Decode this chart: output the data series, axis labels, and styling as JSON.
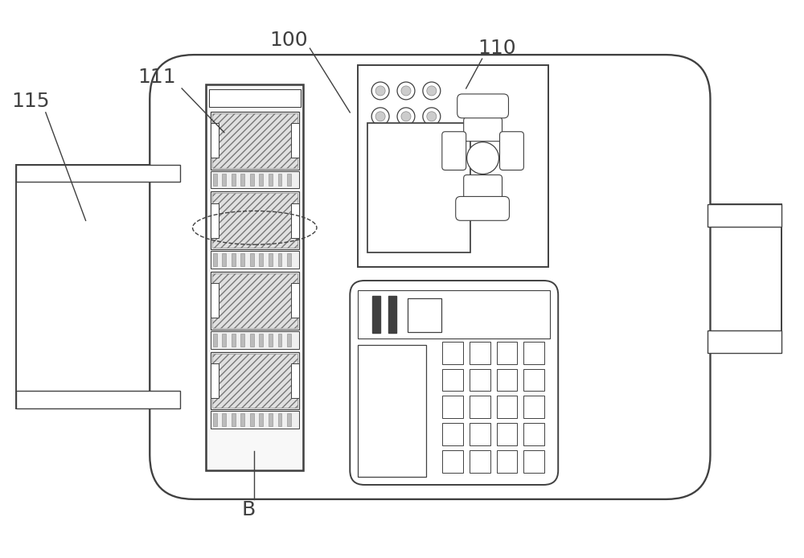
{
  "bg_color": "#ffffff",
  "line_color": "#404040",
  "lw": 1.4,
  "fig_width": 10.0,
  "fig_height": 6.94,
  "label_fontsize": 18
}
